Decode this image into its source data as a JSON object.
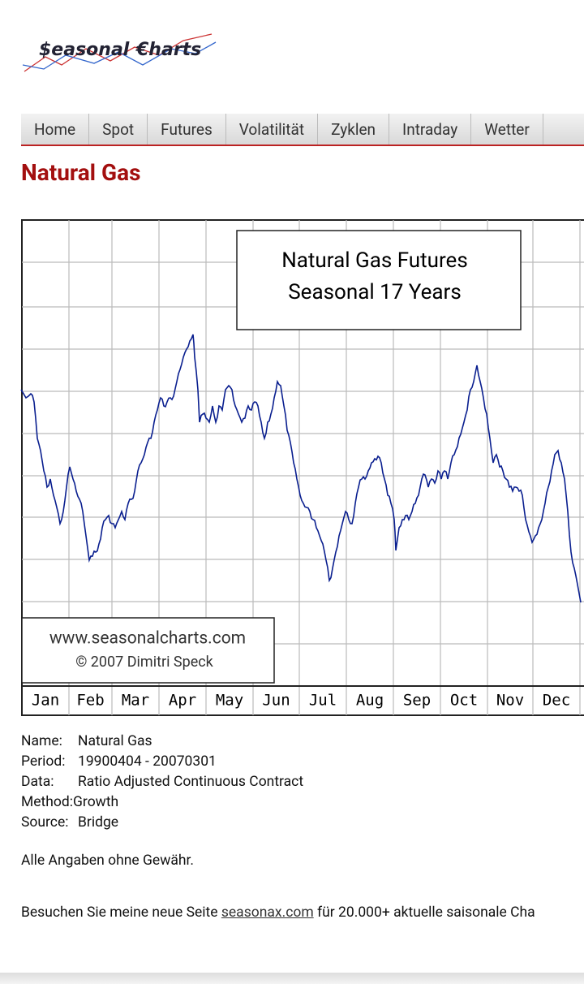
{
  "logo": {
    "part1": "$easonal",
    "part2": "€harts"
  },
  "nav": [
    "Home",
    "Spot",
    "Futures",
    "Volatilität",
    "Zyklen",
    "Intraday",
    "Wetter"
  ],
  "title": "Natural Gas",
  "chart": {
    "title_lines": [
      "Natural Gas Futures",
      "Seasonal 17 Years"
    ],
    "watermark": [
      "www.seasonalcharts.com",
      "© 2007  Dimitri Speck"
    ],
    "months": [
      "Jan",
      "Feb",
      "Mar",
      "Apr",
      "May",
      "Jun",
      "Jul",
      "Aug",
      "Sep",
      "Oct",
      "Nov",
      "Dec"
    ]
  },
  "info": [
    [
      "Name:",
      "Natural Gas"
    ],
    [
      "Period:",
      "19900404 - 20070301"
    ],
    [
      "Data:",
      "Ratio Adjusted Continuous Contract"
    ],
    [
      "Method:",
      "Growth"
    ],
    [
      "Source:",
      "Bridge"
    ]
  ],
  "disclaimer": "Alle Angaben ohne Gewähr.",
  "visit": {
    "before": "Besuchen Sie meine neue Seite",
    "link": "seasonax.com",
    "after": "für 20.000+ aktuelle saisonale Cha"
  }
}
